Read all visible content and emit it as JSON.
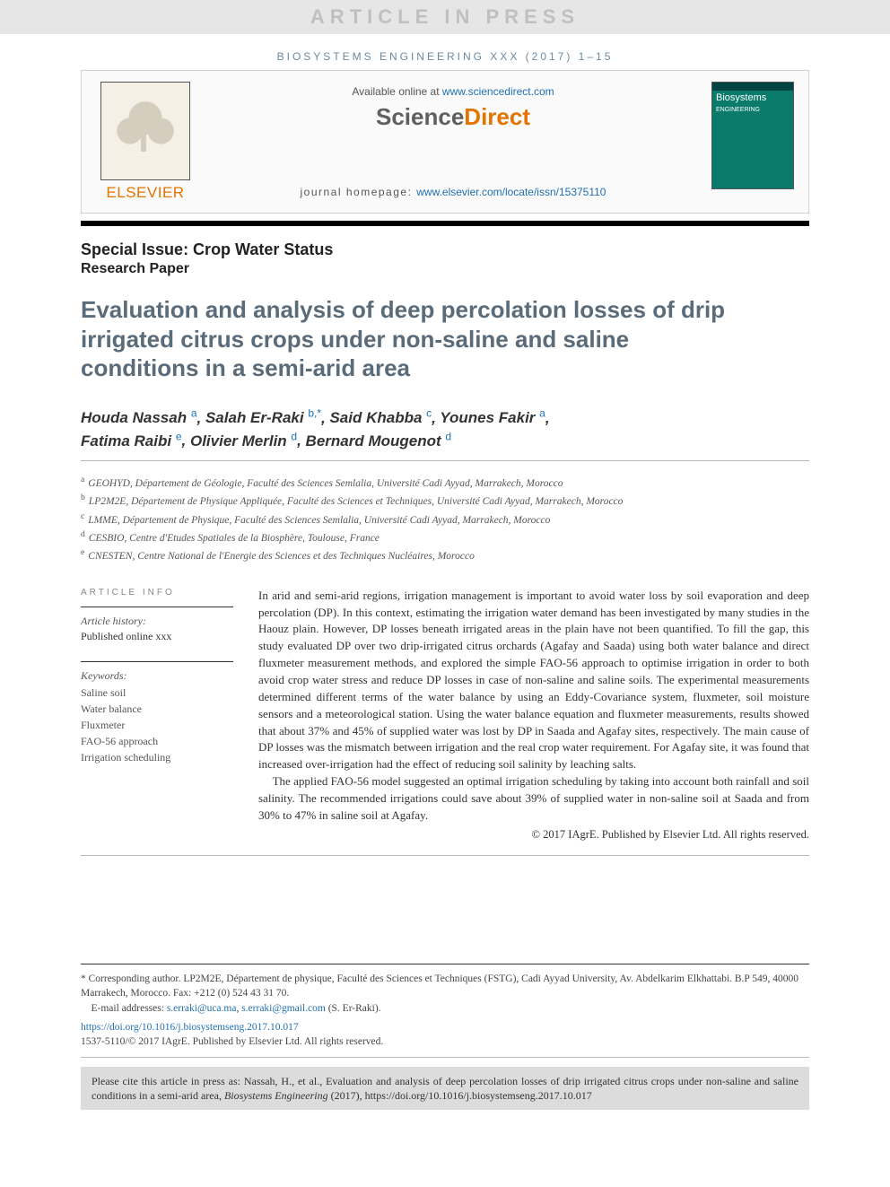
{
  "colors": {
    "banner_bg": "#e6e6e6",
    "accent_orange": "#e37400",
    "link_blue": "#1f6fb2",
    "title_gray": "#5a6b7a",
    "cover_bg": "#0a7a6a"
  },
  "banner": "ARTICLE IN PRESS",
  "journal_ref": "BIOSYSTEMS ENGINEERING XXX (2017) 1–15",
  "header": {
    "publisher_name": "ELSEVIER",
    "available_prefix": "Available online at ",
    "available_link": "www.sciencedirect.com",
    "sciencedirect": "ScienceDirect",
    "homepage_label": "journal homepage: ",
    "homepage_url": "www.elsevier.com/locate/issn/15375110",
    "cover_journal": "Biosystems",
    "cover_journal2": "ENGINEERING"
  },
  "special_issue": "Special Issue: Crop Water Status",
  "paper_type": "Research Paper",
  "title": "Evaluation and analysis of deep percolation losses of drip irrigated citrus crops under non-saline and saline conditions in a semi-arid area",
  "authors": [
    {
      "name": "Houda Nassah",
      "aff": "a"
    },
    {
      "name": "Salah Er-Raki",
      "aff": "b,*"
    },
    {
      "name": "Said Khabba",
      "aff": "c"
    },
    {
      "name": "Younes Fakir",
      "aff": "a"
    },
    {
      "name": "Fatima Raibi",
      "aff": "e"
    },
    {
      "name": "Olivier Merlin",
      "aff": "d"
    },
    {
      "name": "Bernard Mougenot",
      "aff": "d"
    }
  ],
  "affiliations": [
    {
      "key": "a",
      "text": "GEOHYD, Département de Géologie, Faculté des Sciences Semlalia, Université Cadi Ayyad, Marrakech, Morocco"
    },
    {
      "key": "b",
      "text": "LP2M2E, Département de Physique Appliquée, Faculté des Sciences et Techniques, Université Cadi Ayyad, Marrakech, Morocco"
    },
    {
      "key": "c",
      "text": "LMME, Département de Physique, Faculté des Sciences Semlalia, Université Cadi Ayyad, Marrakech, Morocco"
    },
    {
      "key": "d",
      "text": "CESBIO, Centre d'Etudes Spatiales de la Biosphère, Toulouse, France"
    },
    {
      "key": "e",
      "text": "CNESTEN, Centre National de l'Energie des Sciences et des Techniques Nucléaires, Morocco"
    }
  ],
  "article_info_head": "ARTICLE INFO",
  "history_label": "Article history:",
  "history_value": "Published online xxx",
  "keywords_label": "Keywords:",
  "keywords": [
    "Saline soil",
    "Water balance",
    "Fluxmeter",
    "FAO-56 approach",
    "Irrigation scheduling"
  ],
  "abstract": {
    "p1": "In arid and semi-arid regions, irrigation management is important to avoid water loss by soil evaporation and deep percolation (DP). In this context, estimating the irrigation water demand has been investigated by many studies in the Haouz plain. However, DP losses beneath irrigated areas in the plain have not been quantified. To fill the gap, this study evaluated DP over two drip-irrigated citrus orchards (Agafay and Saada) using both water balance and direct fluxmeter measurement methods, and explored the simple FAO-56 approach to optimise irrigation in order to both avoid crop water stress and reduce DP losses in case of non-saline and saline soils. The experimental measurements determined different terms of the water balance by using an Eddy-Covariance system, fluxmeter, soil moisture sensors and a meteorological station. Using the water balance equation and fluxmeter measurements, results showed that about 37% and 45% of supplied water was lost by DP in Saada and Agafay sites, respectively. The main cause of DP losses was the mismatch between irrigation and the real crop water requirement. For Agafay site, it was found that increased over-irrigation had the effect of reducing soil salinity by leaching salts.",
    "p2": "The applied FAO-56 model suggested an optimal irrigation scheduling by taking into account both rainfall and soil salinity. The recommended irrigations could save about 39% of supplied water in non-saline soil at Saada and from 30% to 47% in saline soil at Agafay.",
    "copyright": "© 2017 IAgrE. Published by Elsevier Ltd. All rights reserved."
  },
  "footnotes": {
    "corresponding": "* Corresponding author. LP2M2E, Département de physique, Faculté des Sciences et Techniques (FSTG), Cadi Ayyad University, Av. Abdelkarim Elkhattabi. B.P 549, 40000 Marrakech, Morocco. Fax: +212 (0) 524 43 31 70.",
    "email_label": "E-mail addresses: ",
    "emails": [
      "s.erraki@uca.ma",
      "s.erraki@gmail.com"
    ],
    "email_suffix": " (S. Er-Raki).",
    "doi": "https://doi.org/10.1016/j.biosystemseng.2017.10.017",
    "issn_line": "1537-5110/© 2017 IAgrE. Published by Elsevier Ltd. All rights reserved."
  },
  "cite_box": {
    "prefix": "Please cite this article in press as: Nassah, H., et al., Evaluation and analysis of deep percolation losses of drip irrigated citrus crops under non-saline and saline conditions in a semi-arid area, ",
    "journal": "Biosystems Engineering",
    "suffix": " (2017), https://doi.org/10.1016/j.biosystemseng.2017.10.017"
  }
}
